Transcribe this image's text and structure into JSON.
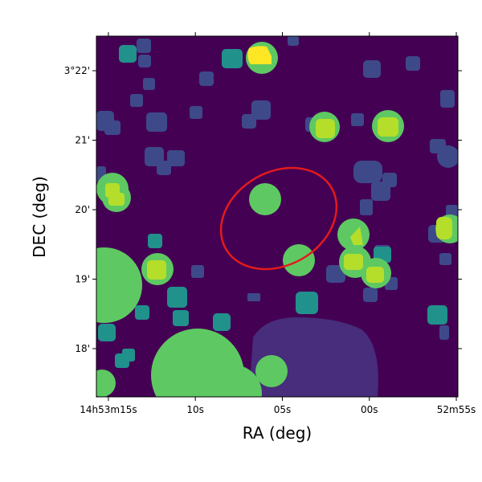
{
  "chart_data": {
    "type": "image",
    "x_label": "RA (deg)",
    "y_label": "DEC (deg)",
    "xlim": [
      223.31537,
      223.22879
    ],
    "ylim": [
      3.28843,
      3.37496
    ],
    "xticks": [
      {
        "value": 223.3125,
        "label": "14h53m15s"
      },
      {
        "value": 223.29167,
        "label": "10s"
      },
      {
        "value": 223.27083,
        "label": "05s"
      },
      {
        "value": 223.25,
        "label": "00s"
      },
      {
        "value": 223.22917,
        "label": "52m55s"
      }
    ],
    "yticks": [
      {
        "value": 3.36667,
        "label": "3°22'"
      },
      {
        "value": 3.35,
        "label": "21'"
      },
      {
        "value": 3.33333,
        "label": "20'"
      },
      {
        "value": 3.31667,
        "label": "19'"
      },
      {
        "value": 3.3,
        "label": "18'"
      }
    ]
  }
}
